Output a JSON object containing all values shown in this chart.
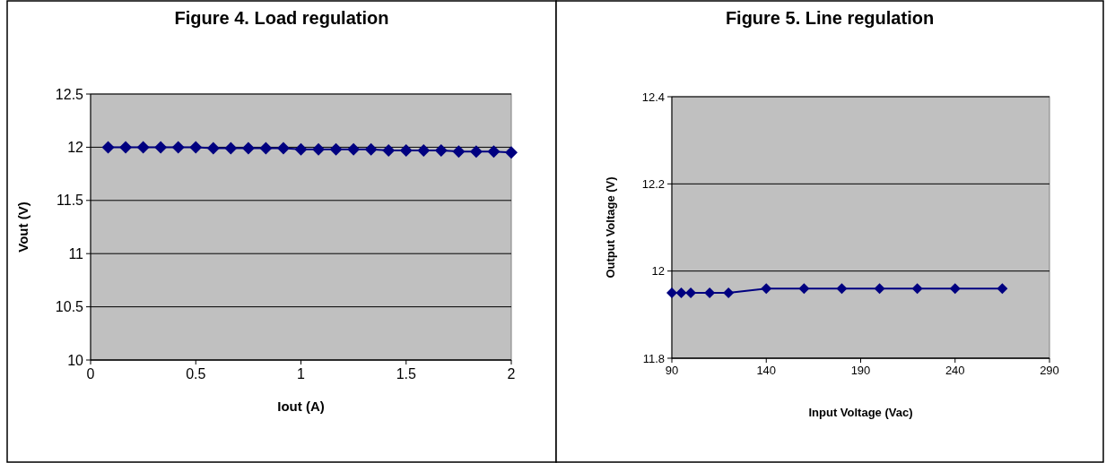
{
  "chart_data": [
    {
      "type": "line",
      "title": "Figure 4. Load regulation",
      "xlabel": "Iout (A)",
      "ylabel": "Vout (V)",
      "x": [
        0.0833,
        0.1667,
        0.25,
        0.3333,
        0.4167,
        0.5,
        0.5833,
        0.6667,
        0.75,
        0.8333,
        0.9167,
        1,
        1.0833,
        1.1667,
        1.25,
        1.3333,
        1.4167,
        1.5,
        1.5833,
        1.6667,
        1.75,
        1.8333,
        1.9167,
        2
      ],
      "series": [
        {
          "color": "#000080",
          "values": [
            12.0,
            12.0,
            12.0,
            12.0,
            12.0,
            12.0,
            11.99,
            11.99,
            11.99,
            11.99,
            11.99,
            11.98,
            11.98,
            11.98,
            11.98,
            11.98,
            11.97,
            11.97,
            11.97,
            11.97,
            11.96,
            11.96,
            11.96,
            11.95
          ]
        }
      ],
      "xlim": [
        0,
        2
      ],
      "xticks": [
        0,
        0.5,
        1,
        1.5,
        2
      ],
      "ylim": [
        10,
        12.5
      ],
      "yticks": [
        10,
        10.5,
        11,
        11.5,
        12,
        12.5
      ],
      "grid": "y",
      "marker": "diamond",
      "line_style": "solid"
    },
    {
      "type": "line",
      "title": "Figure 5. Line regulation",
      "xlabel": "Input Voltage (Vac)",
      "ylabel": "Output Voltage (V)",
      "x": [
        90,
        95,
        100,
        110,
        120,
        140,
        160,
        180,
        200,
        220,
        240,
        265
      ],
      "series": [
        {
          "color": "#000080",
          "values": [
            11.95,
            11.95,
            11.95,
            11.95,
            11.95,
            11.96,
            11.96,
            11.96,
            11.96,
            11.96,
            11.96,
            11.96
          ]
        }
      ],
      "xlim": [
        90,
        290
      ],
      "xticks": [
        90,
        140,
        190,
        240,
        290
      ],
      "ylim": [
        11.8,
        12.4
      ],
      "yticks": [
        11.8,
        12,
        12.2,
        12.4
      ],
      "grid": "y",
      "marker": "diamond",
      "line_style": "solid"
    }
  ]
}
